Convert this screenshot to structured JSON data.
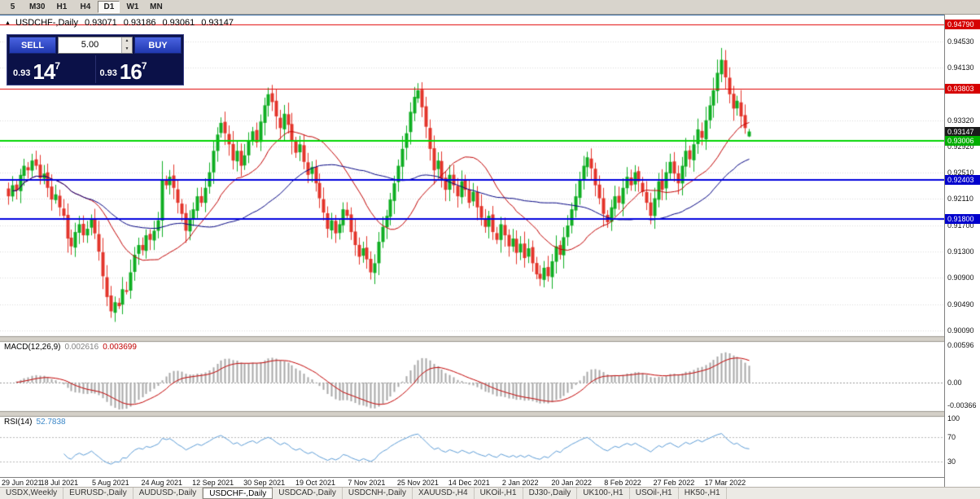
{
  "window": {
    "symbol": "USDCHF-,Daily",
    "o": "0.93071",
    "h": "0.93186",
    "l": "0.93061",
    "c": "0.93147"
  },
  "icons": {
    "chart_marker": "▲",
    "spin_up": "▲",
    "spin_down": "▼"
  },
  "toolbar": {
    "timeframes": [
      {
        "label": "5"
      },
      {
        "label": "M30"
      },
      {
        "label": "H1"
      },
      {
        "label": "H4"
      },
      {
        "label": "D1",
        "active": true
      },
      {
        "label": "W1"
      },
      {
        "label": "MN"
      }
    ]
  },
  "trade_panel": {
    "sell_label": "SELL",
    "buy_label": "BUY",
    "volume": "5.00",
    "sell_price_small": "0.93",
    "sell_price_big": "14",
    "sell_price_sup": "7",
    "buy_price_small": "0.93",
    "buy_price_big": "16",
    "buy_price_sup": "7"
  },
  "macd": {
    "label": "MACD(12,26,9)",
    "value_main": "0.002616",
    "value_signal": "0.003699",
    "params": {
      "fast": 12,
      "slow": 26,
      "signal": 9
    },
    "axis_labels": [
      {
        "v": 0.00596,
        "t": "0.00596"
      },
      {
        "v": 0,
        "t": "0.00"
      },
      {
        "v": -0.00366,
        "t": "-0.00366"
      }
    ]
  },
  "rsi": {
    "label": "RSI(14)",
    "value": "52.7838",
    "period": 14,
    "levels": [
      70,
      30
    ],
    "axis_labels": [
      {
        "v": 100,
        "t": "100"
      },
      {
        "v": 70,
        "t": "70"
      },
      {
        "v": 30,
        "t": "30"
      }
    ]
  },
  "chart_data": {
    "type": "candlestick",
    "title": "USDCHF-,Daily",
    "x_labels": [
      "29 Jun 2021",
      "18 Jul 2021",
      "5 Aug 2021",
      "24 Aug 2021",
      "12 Sep 2021",
      "30 Sep 2021",
      "19 Oct 2021",
      "7 Nov 2021",
      "25 Nov 2021",
      "14 Dec 2021",
      "2 Jan 2022",
      "20 Jan 2022",
      "8 Feb 2022",
      "27 Feb 2022",
      "17 Mar 2022"
    ],
    "bars_per_label": 13,
    "y_range": [
      0.9001,
      0.9492
    ],
    "colors": {
      "up": "#0fae22",
      "down": "#e3342a",
      "ma_fast": "#c00000",
      "ma_slow": "#000080",
      "macd_hist": "#a8a8a8",
      "macd_signal": "#c00000",
      "rsi": "#5b9bd5",
      "grid": "#d8d8d8"
    },
    "ma_fast_period": 20,
    "ma_slow_period": 45,
    "h_lines": [
      {
        "value": 0.9479,
        "color": "#e00000",
        "width": 1
      },
      {
        "value": 0.93803,
        "color": "#e00000",
        "width": 1
      },
      {
        "value": 0.93006,
        "color": "#00d400",
        "width": 2
      },
      {
        "value": 0.92403,
        "color": "#0000dd",
        "width": 2
      },
      {
        "value": 0.918,
        "color": "#0000dd",
        "width": 2
      }
    ],
    "price_axis": {
      "labels": [
        {
          "v": 0.9453,
          "t": "0.94530"
        },
        {
          "v": 0.9413,
          "t": "0.94130"
        },
        {
          "v": 0.9332,
          "t": "0.93320"
        },
        {
          "v": 0.9292,
          "t": "0.92920"
        },
        {
          "v": 0.9251,
          "t": "0.92510"
        },
        {
          "v": 0.9211,
          "t": "0.92110"
        },
        {
          "v": 0.917,
          "t": "0.91700"
        },
        {
          "v": 0.913,
          "t": "0.91300"
        },
        {
          "v": 0.909,
          "t": "0.90900"
        },
        {
          "v": 0.9049,
          "t": "0.90490"
        },
        {
          "v": 0.9009,
          "t": "0.90090"
        }
      ],
      "tags": [
        {
          "v": 0.9479,
          "t": "0.94790",
          "bg": "#d60000"
        },
        {
          "v": 0.93803,
          "t": "0.93803",
          "bg": "#d60000"
        },
        {
          "v": 0.93147,
          "t": "0.93147",
          "bg": "#1a1a1a"
        },
        {
          "v": 0.93006,
          "t": "0.93006",
          "bg": "#00ae00"
        },
        {
          "v": 0.92403,
          "t": "0.92403",
          "bg": "#0000cc"
        },
        {
          "v": 0.918,
          "t": "0.91800",
          "bg": "#0000cc"
        }
      ]
    },
    "candles": {
      "closes": [
        0.9215,
        0.9232,
        0.9224,
        0.9248,
        0.9262,
        0.9255,
        0.927,
        0.9262,
        0.9243,
        0.925,
        0.9228,
        0.921,
        0.9218,
        0.9198,
        0.9185,
        0.915,
        0.9138,
        0.916,
        0.9172,
        0.9155,
        0.9165,
        0.918,
        0.9158,
        0.913,
        0.9092,
        0.906,
        0.9038,
        0.9052,
        0.9046,
        0.9072,
        0.9068,
        0.9098,
        0.9125,
        0.914,
        0.9132,
        0.9155,
        0.9148,
        0.9162,
        0.9178,
        0.924,
        0.9232,
        0.9245,
        0.9228,
        0.9205,
        0.9188,
        0.9162,
        0.918,
        0.9195,
        0.9215,
        0.9205,
        0.9228,
        0.9252,
        0.9285,
        0.931,
        0.9328,
        0.9312,
        0.9295,
        0.927,
        0.9285,
        0.9262,
        0.9278,
        0.93,
        0.9315,
        0.9298,
        0.933,
        0.9355,
        0.9372,
        0.936,
        0.9338,
        0.932,
        0.9342,
        0.9325,
        0.93,
        0.9282,
        0.9295,
        0.9268,
        0.9248,
        0.926,
        0.9235,
        0.9212,
        0.919,
        0.9165,
        0.9178,
        0.9158,
        0.9172,
        0.9195,
        0.9185,
        0.916,
        0.914,
        0.9122,
        0.9135,
        0.9118,
        0.9098,
        0.9112,
        0.9145,
        0.9168,
        0.9185,
        0.921,
        0.9235,
        0.9262,
        0.9288,
        0.9312,
        0.9345,
        0.9368,
        0.9378,
        0.9352,
        0.9322,
        0.9288,
        0.9255,
        0.927,
        0.9242,
        0.9225,
        0.9248,
        0.9232,
        0.9215,
        0.9238,
        0.9225,
        0.9205,
        0.9222,
        0.9198,
        0.9182,
        0.9168,
        0.9185,
        0.916,
        0.9148,
        0.9172,
        0.9155,
        0.9138,
        0.915,
        0.9128,
        0.9142,
        0.912,
        0.9135,
        0.9112,
        0.9095,
        0.9088,
        0.9105,
        0.9092,
        0.9115,
        0.9138,
        0.9125,
        0.9152,
        0.917,
        0.9195,
        0.9215,
        0.924,
        0.9262,
        0.9275,
        0.9258,
        0.9232,
        0.9212,
        0.9188,
        0.9175,
        0.9198,
        0.9215,
        0.9205,
        0.9228,
        0.9245,
        0.9232,
        0.9252,
        0.9238,
        0.9222,
        0.9205,
        0.9185,
        0.9212,
        0.9238,
        0.9225,
        0.9252,
        0.9268,
        0.925,
        0.9235,
        0.9262,
        0.9285,
        0.9272,
        0.9295,
        0.9318,
        0.9305,
        0.9332,
        0.9355,
        0.9378,
        0.9405,
        0.9425,
        0.9398,
        0.9372,
        0.935,
        0.9362,
        0.9338,
        0.932,
        0.93147
      ],
      "last": {
        "o": 0.93071,
        "h": 0.93186,
        "l": 0.93061,
        "c": 0.93147
      }
    }
  },
  "tabs": {
    "items": [
      {
        "label": "USDX,Weekly"
      },
      {
        "label": "EURUSD-,Daily"
      },
      {
        "label": "AUDUSD-,Daily"
      },
      {
        "label": "USDCHF-,Daily",
        "active": true
      },
      {
        "label": "USDCAD-,Daily"
      },
      {
        "label": "USDCNH-,Daily"
      },
      {
        "label": "XAUUSD-,H4"
      },
      {
        "label": "UKOil-,H1"
      },
      {
        "label": "DJ30-,Daily"
      },
      {
        "label": "UK100-,H1"
      },
      {
        "label": "USOil-,H1"
      },
      {
        "label": "HK50-,H1"
      }
    ]
  }
}
